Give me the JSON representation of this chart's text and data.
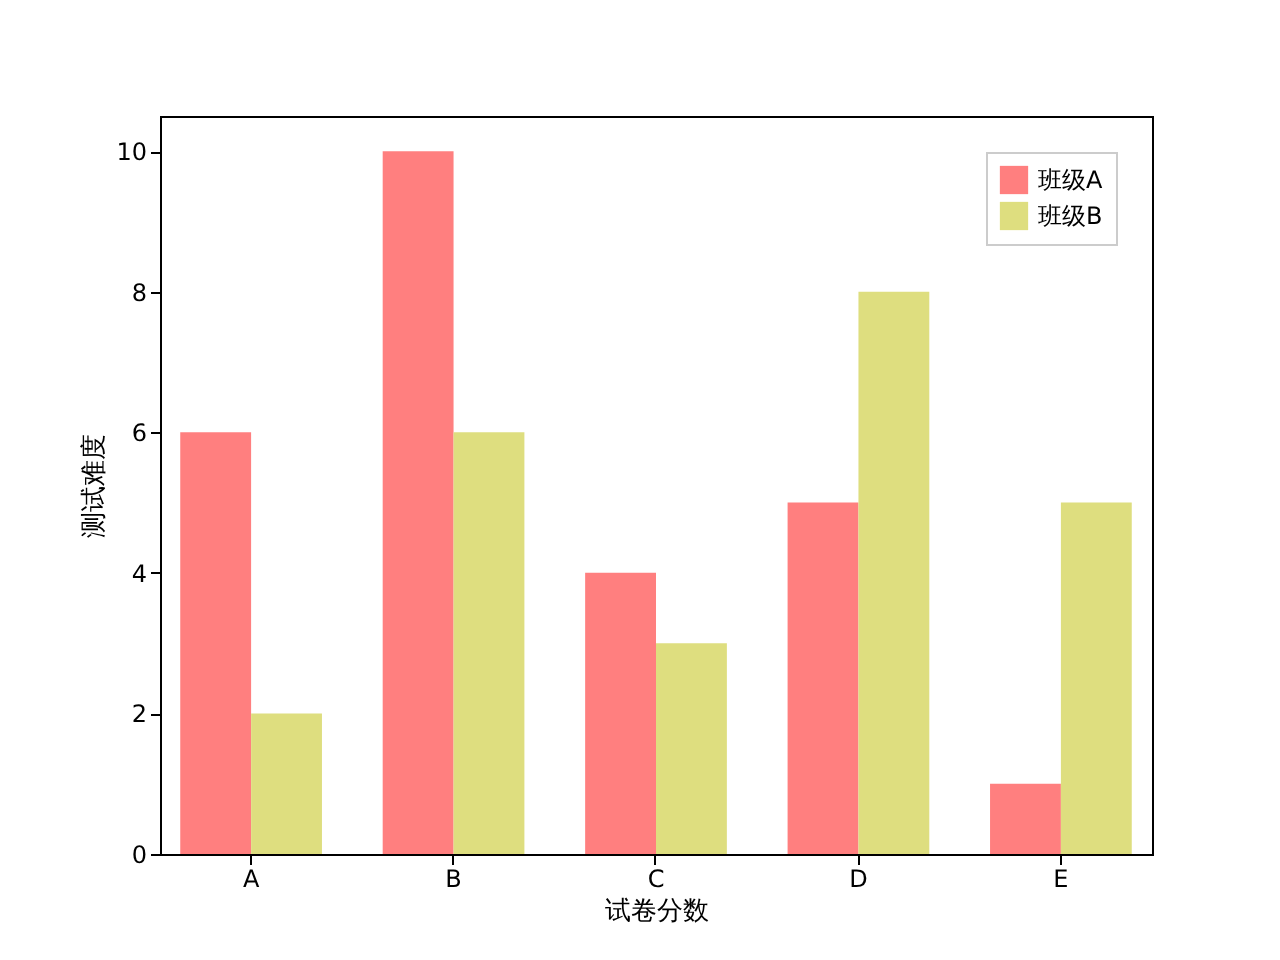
{
  "chart_data": {
    "type": "bar",
    "xlabel": "试卷分数",
    "ylabel": "测试难度",
    "categories": [
      "A",
      "B",
      "C",
      "D",
      "E"
    ],
    "series": [
      {
        "name": "班级A",
        "color": "#ff7f7f",
        "values": [
          6,
          10,
          4,
          5,
          1
        ]
      },
      {
        "name": "班级B",
        "color": "#dede7f",
        "values": [
          2,
          6,
          3,
          8,
          5
        ]
      }
    ],
    "ylim": [
      0,
      10.5
    ],
    "yticks": [
      0,
      2,
      4,
      6,
      8,
      10
    ],
    "grid": false,
    "legend": "top right"
  }
}
